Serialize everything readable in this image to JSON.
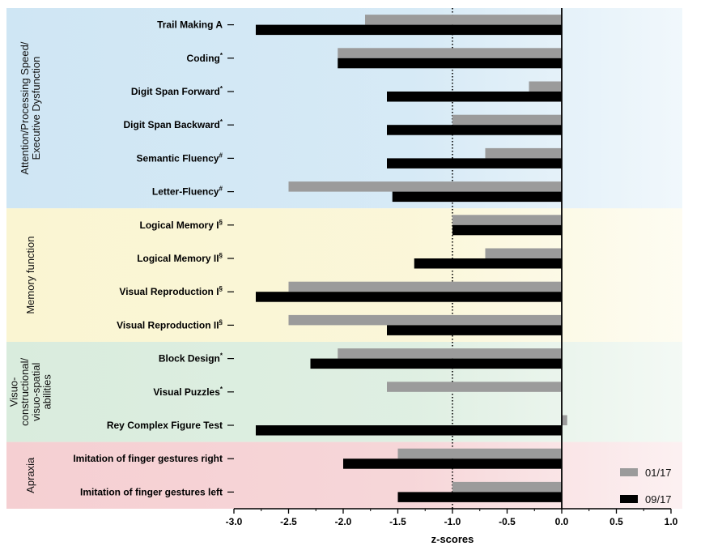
{
  "chart_data": {
    "type": "bar",
    "orientation": "horizontal",
    "xlabel": "z-scores",
    "xlim": [
      -3.0,
      1.0
    ],
    "xticks": [
      -3.0,
      -2.5,
      -2.0,
      -1.5,
      -1.0,
      -0.5,
      0.0,
      0.5,
      1.0
    ],
    "xtick_labels": [
      "-3.0",
      "-2.5",
      "-2.0",
      "-1.5",
      "-1.0",
      "-0.5",
      "0.0",
      "0.5",
      "1.0"
    ],
    "reference_line": -1.0,
    "legend_position": "bottom-right",
    "categories": [
      {
        "label": "Trail Making A",
        "sup": ""
      },
      {
        "label": "Coding",
        "sup": "*"
      },
      {
        "label": "Digit Span Forward",
        "sup": "*"
      },
      {
        "label": "Digit Span Backward",
        "sup": "*"
      },
      {
        "label": "Semantic Fluency",
        "sup": "#"
      },
      {
        "label": "Letter-Fluency",
        "sup": "#"
      },
      {
        "label": "Logical Memory I",
        "sup": "§"
      },
      {
        "label": "Logical Memory II",
        "sup": "§"
      },
      {
        "label": "Visual Reproduction I",
        "sup": "§"
      },
      {
        "label": "Visual Reproduction II",
        "sup": "§"
      },
      {
        "label": "Block Design",
        "sup": "*"
      },
      {
        "label": "Visual Puzzles",
        "sup": "*"
      },
      {
        "label": "Rey Complex Figure Test",
        "sup": ""
      },
      {
        "label": "Imitation of finger gestures right",
        "sup": ""
      },
      {
        "label": "Imitation of finger gestures left",
        "sup": ""
      }
    ],
    "series": [
      {
        "name": "01/17",
        "color": "#9b9b9b",
        "values": [
          -1.8,
          -2.05,
          -0.3,
          -1.0,
          -0.7,
          -2.5,
          -1.0,
          -0.7,
          -2.5,
          -2.5,
          -2.05,
          -1.6,
          0.05,
          -1.5,
          -1.0
        ]
      },
      {
        "name": "09/17",
        "color": "#000000",
        "values": [
          -2.8,
          -2.05,
          -1.6,
          -1.6,
          -1.6,
          -1.55,
          -1.0,
          -1.35,
          -2.8,
          -1.6,
          -2.3,
          null,
          -2.8,
          -2.0,
          -1.5
        ]
      }
    ],
    "groups": [
      {
        "lines": [
          "Attention/Processing Speed/",
          "Executive Dysfunction"
        ],
        "start": 0,
        "end": 5,
        "color": "#cfe6f4"
      },
      {
        "lines": [
          "Memory function"
        ],
        "start": 6,
        "end": 9,
        "color": "#faf5d2"
      },
      {
        "lines": [
          "Visuo-",
          "constructional/",
          "visuo-spatial",
          "abilities"
        ],
        "start": 10,
        "end": 12,
        "color": "#d9ecdd"
      },
      {
        "lines": [
          "Apraxia"
        ],
        "start": 13,
        "end": 14,
        "color": "#f5cfd2"
      }
    ]
  }
}
